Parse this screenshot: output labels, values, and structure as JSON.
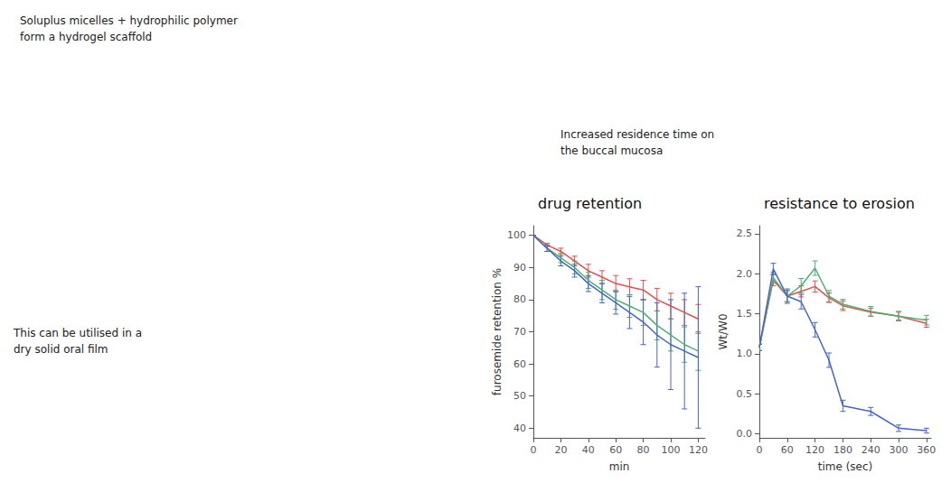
{
  "chart_data": [
    {
      "type": "line",
      "title": "drug retention",
      "xlabel": "min",
      "ylabel": "furosemide retention %",
      "xlim": [
        0,
        125
      ],
      "ylim": [
        37,
        103
      ],
      "xticks": [
        0,
        20,
        40,
        60,
        80,
        100,
        120
      ],
      "yticks": [
        40,
        50,
        60,
        70,
        80,
        90,
        100
      ],
      "grid": false,
      "x": [
        0,
        10,
        20,
        30,
        40,
        50,
        60,
        70,
        80,
        90,
        100,
        110,
        120
      ],
      "series": [
        {
          "color": "#e05050",
          "values": [
            100,
            97,
            95,
            92,
            89,
            87,
            85,
            84,
            83,
            80,
            78,
            76,
            74
          ],
          "errors": [
            0,
            0.5,
            1,
            1.5,
            2,
            2,
            2.5,
            2.5,
            3,
            3.5,
            4,
            4,
            4.5
          ]
        },
        {
          "color": "#50b070",
          "values": [
            100,
            96,
            93,
            90,
            86,
            83,
            80,
            78,
            76,
            72,
            69,
            66,
            64
          ],
          "errors": [
            0,
            1,
            1.5,
            2,
            2.5,
            3,
            3,
            3.5,
            4,
            4.5,
            5,
            5.5,
            6
          ]
        },
        {
          "color": "#4466cc",
          "values": [
            100,
            96,
            92,
            89,
            85,
            82,
            79,
            76,
            73,
            69,
            66,
            64,
            62
          ],
          "errors": [
            0,
            1,
            1.5,
            2,
            2.5,
            3,
            3.5,
            5,
            7,
            10,
            14,
            18,
            22
          ]
        }
      ],
      "annotations": [
        "Soluplus micelles + hydrophilic polymer",
        "form a hydrogel scaffold",
        "This can be utilised in a",
        "dry solid oral film",
        "Increased residence time on\nthe buccal mucosa"
      ]
    },
    {
      "type": "line",
      "title": "resistance to erosion",
      "xlabel": "time (sec)",
      "ylabel": "Wt/W0",
      "xlim": [
        0,
        370
      ],
      "ylim": [
        -0.05,
        2.6
      ],
      "xticks": [
        0,
        60,
        120,
        180,
        240,
        300,
        360
      ],
      "yticks": [
        {
          "value": 0,
          "label": "0.0"
        },
        0.5,
        {
          "value": 1,
          "label": "1.0"
        },
        1.5,
        {
          "value": 2,
          "label": "2.0"
        },
        2.5
      ],
      "grid": false,
      "x": [
        0,
        30,
        60,
        90,
        120,
        150,
        180,
        240,
        300,
        360
      ],
      "series": [
        {
          "color": "#e05050",
          "values": [
            1.08,
            1.92,
            1.72,
            1.78,
            1.84,
            1.7,
            1.6,
            1.52,
            1.47,
            1.38
          ],
          "errors": [
            0.04,
            0.07,
            0.07,
            0.07,
            0.07,
            0.06,
            0.06,
            0.05,
            0.05,
            0.05
          ]
        },
        {
          "color": "#50b070",
          "values": [
            1.08,
            1.95,
            1.72,
            1.85,
            2.07,
            1.72,
            1.62,
            1.53,
            1.47,
            1.42
          ],
          "errors": [
            0.04,
            0.07,
            0.07,
            0.09,
            0.09,
            0.07,
            0.06,
            0.06,
            0.06,
            0.06
          ]
        },
        {
          "color": "#4466cc",
          "values": [
            1.08,
            2.06,
            1.72,
            1.65,
            1.3,
            0.92,
            0.35,
            0.28,
            0.07,
            0.04
          ],
          "errors": [
            0.04,
            0.07,
            0.09,
            0.09,
            0.09,
            0.09,
            0.07,
            0.05,
            0.04,
            0.03
          ]
        }
      ]
    }
  ]
}
